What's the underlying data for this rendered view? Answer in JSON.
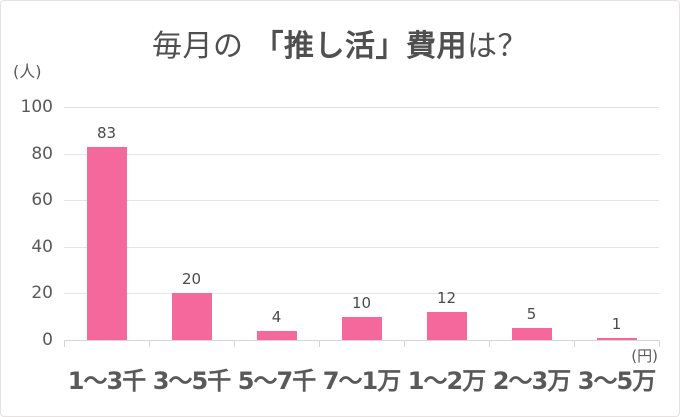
{
  "chart_data": {
    "type": "bar",
    "title": "毎月の「推し活」費用は？",
    "title_parts": {
      "prefix": "毎月の ",
      "emphasis": "「推し活」費用",
      "suffix": "は？"
    },
    "categories": [
      "1〜3千",
      "3〜5千",
      "5〜7千",
      "7〜1万",
      "1〜2万",
      "2〜3万",
      "3〜5万"
    ],
    "values": [
      83,
      20,
      4,
      10,
      12,
      5,
      1
    ],
    "ylabel": "(人)",
    "xlabel": "(円)",
    "yticks": [
      0,
      20,
      40,
      60,
      80,
      100
    ],
    "ylim": [
      0,
      100
    ],
    "grid": true,
    "legend": "none",
    "colors": {
      "bar": "#F4689B",
      "text": "#595959",
      "title": "#4F4F4F",
      "gridline": "#E4E4E4",
      "axis": "#D5D5D5",
      "background": "#FFFFFF",
      "border": "#E6E2E2"
    }
  }
}
